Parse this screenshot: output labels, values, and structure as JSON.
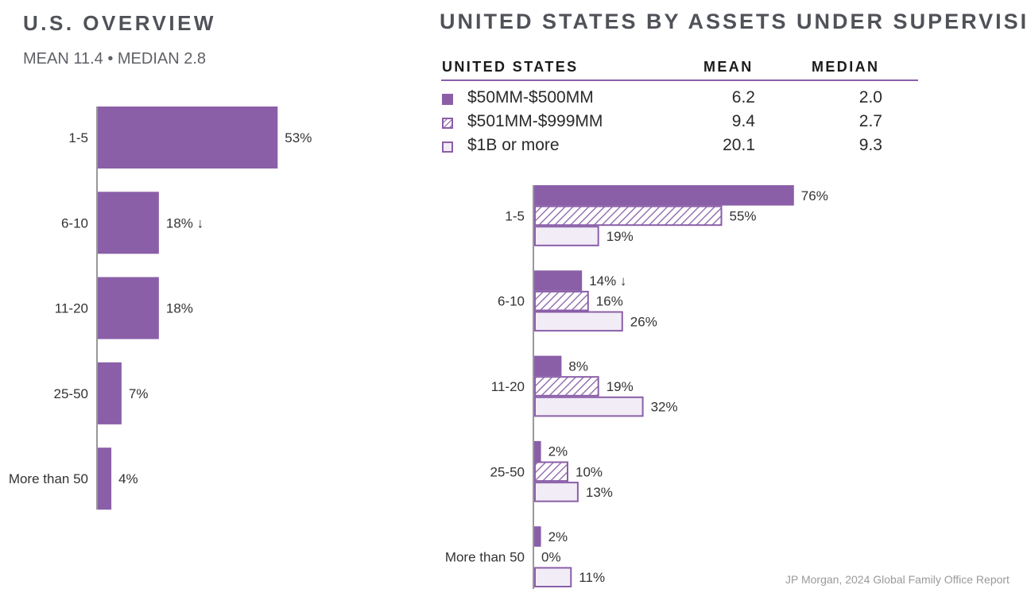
{
  "left_panel": {
    "title": "U.S. OVERVIEW",
    "subtitle": "MEAN 11.4 • MEDIAN 2.8"
  },
  "right_panel": {
    "title": "UNITED STATES BY ASSETS UNDER SUPERVISION",
    "table": {
      "headers": [
        "UNITED STATES",
        "MEAN",
        "MEDIAN"
      ],
      "rows": [
        {
          "label": "$50MM-$500MM",
          "mean": "6.2",
          "median": "2.0",
          "swatch": "solid"
        },
        {
          "label": "$501MM-$999MM",
          "mean": "9.4",
          "median": "2.7",
          "swatch": "hatched"
        },
        {
          "label": "$1B or more",
          "mean": "20.1",
          "median": "9.3",
          "swatch": "light"
        }
      ]
    }
  },
  "colors": {
    "purple": "#8a5fa8",
    "light_purple": "#f1ecf6",
    "axis": "#999999"
  },
  "chart_data": [
    {
      "type": "bar",
      "orientation": "horizontal",
      "title": "U.S. OVERVIEW",
      "categories": [
        "1-5",
        "6-10",
        "11-20",
        "25-50",
        "More than 50"
      ],
      "values": [
        53,
        18,
        18,
        7,
        4
      ],
      "value_labels": [
        "53%",
        "18%",
        "18%",
        "7%",
        "4%"
      ],
      "annotations": [
        {
          "category": "6-10",
          "marker": "↓"
        }
      ],
      "xlim": [
        0,
        100
      ]
    },
    {
      "type": "bar",
      "orientation": "horizontal",
      "title": "UNITED STATES BY ASSETS UNDER SUPERVISION",
      "categories": [
        "1-5",
        "6-10",
        "11-20",
        "25-50",
        "More than 50"
      ],
      "series": [
        {
          "name": "$50MM-$500MM",
          "values": [
            76,
            14,
            8,
            2,
            2
          ],
          "value_labels": [
            "76%",
            "14%",
            "8%",
            "2%",
            "2%"
          ],
          "style": "solid"
        },
        {
          "name": "$501MM-$999MM",
          "values": [
            55,
            16,
            19,
            10,
            0
          ],
          "value_labels": [
            "55%",
            "16%",
            "19%",
            "10%",
            "0%"
          ],
          "style": "hatched"
        },
        {
          "name": "$1B or more",
          "values": [
            19,
            26,
            32,
            13,
            11
          ],
          "value_labels": [
            "19%",
            "26%",
            "32%",
            "13%",
            "11%"
          ],
          "style": "light"
        }
      ],
      "annotations": [
        {
          "category": "6-10",
          "series": "$50MM-$500MM",
          "marker": "↓"
        }
      ],
      "xlim": [
        0,
        100
      ]
    }
  ],
  "source": "JP Morgan, 2024 Global Family Office Report"
}
